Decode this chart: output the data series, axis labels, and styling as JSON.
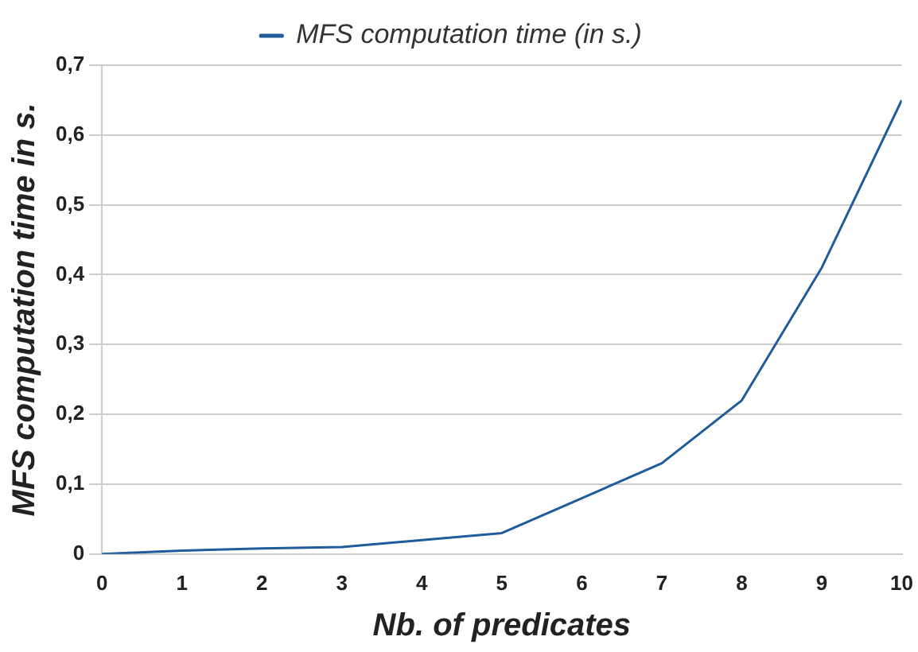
{
  "chart_data": {
    "type": "line",
    "xlabel": "Nb. of predicates",
    "ylabel": "MFS computation time in s.",
    "x": [
      0,
      1,
      2,
      3,
      4,
      5,
      6,
      7,
      8,
      9,
      10
    ],
    "series": [
      {
        "name": "MFS computation time (in s.)",
        "color": "#1f5c99",
        "values": [
          0,
          0.005,
          0.008,
          0.01,
          0.02,
          0.03,
          0.08,
          0.13,
          0.22,
          0.41,
          0.65
        ]
      }
    ],
    "xlim": [
      0,
      10
    ],
    "xticks": [
      0,
      1,
      2,
      3,
      4,
      5,
      6,
      7,
      8,
      9,
      10
    ],
    "ylim": [
      0,
      0.7
    ],
    "yticks": [
      {
        "value": 0,
        "label": "0"
      },
      {
        "value": 0.1,
        "label": "0,1"
      },
      {
        "value": 0.2,
        "label": "0,2"
      },
      {
        "value": 0.3,
        "label": "0,3"
      },
      {
        "value": 0.4,
        "label": "0,4"
      },
      {
        "value": 0.5,
        "label": "0,5"
      },
      {
        "value": 0.6,
        "label": "0,6"
      },
      {
        "value": 0.7,
        "label": "0,7"
      }
    ],
    "grid": "y",
    "legend": "top",
    "marker": "none",
    "line_style": "solid"
  }
}
